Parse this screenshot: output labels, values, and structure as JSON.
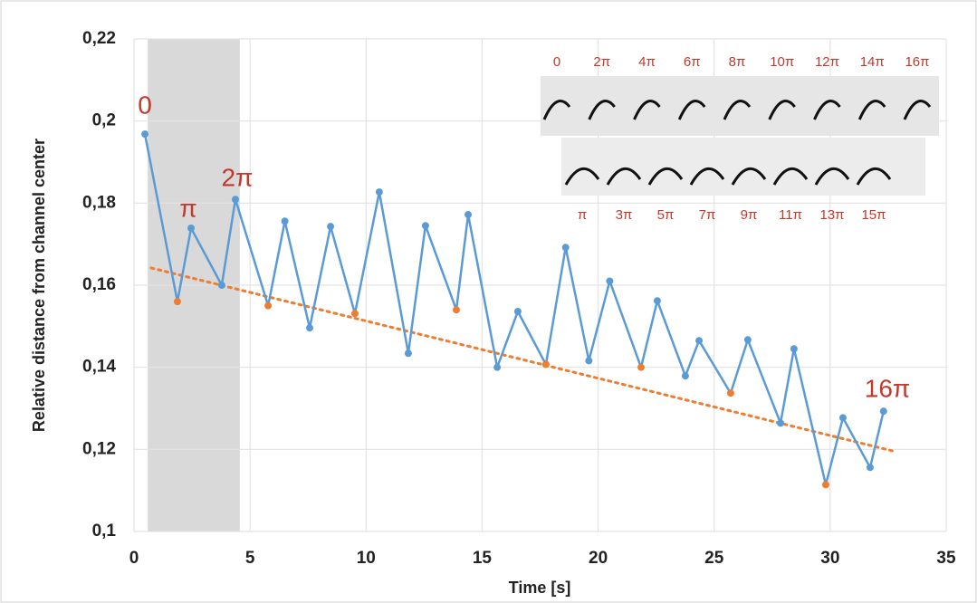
{
  "chart_data": {
    "type": "line",
    "xlabel": "Time [s]",
    "ylabel": "Relative distance from channel center",
    "xlim": [
      0,
      35
    ],
    "xticks": [
      0,
      5,
      10,
      15,
      20,
      25,
      30,
      35
    ],
    "ylim": [
      0.1,
      0.22
    ],
    "yticks": [
      {
        "value": 0.1,
        "label": "0,1"
      },
      {
        "value": 0.12,
        "label": "0,12"
      },
      {
        "value": 0.14,
        "label": "0,14"
      },
      {
        "value": 0.16,
        "label": "0,16"
      },
      {
        "value": 0.18,
        "label": "0,18"
      },
      {
        "value": 0.2,
        "label": "0,2"
      },
      {
        "value": 0.22,
        "label": "0,22"
      }
    ],
    "grid": true,
    "shaded_x": [
      0.59,
      4.56
    ],
    "shade_color": "#d9d9d9",
    "series": [
      {
        "color": "#5b9bd5",
        "x": [
          0.47,
          1.87,
          2.46,
          3.78,
          4.37,
          5.78,
          6.5,
          7.57,
          8.47,
          9.52,
          10.57,
          11.82,
          12.56,
          13.89,
          14.4,
          15.65,
          16.54,
          17.75,
          18.6,
          19.6,
          20.5,
          21.85,
          22.55,
          23.76,
          24.35,
          25.71,
          26.45,
          27.86,
          28.44,
          29.81,
          30.55,
          31.72,
          32.3
        ],
        "values": [
          0.1968,
          0.156,
          0.1739,
          0.16,
          0.1809,
          0.155,
          0.1756,
          0.1496,
          0.1743,
          0.1531,
          0.1827,
          0.1434,
          0.1745,
          0.154,
          0.1772,
          0.14,
          0.1536,
          0.1407,
          0.1692,
          0.1416,
          0.161,
          0.14,
          0.1562,
          0.1379,
          0.1465,
          0.1337,
          0.1467,
          0.1264,
          0.1445,
          0.1114,
          0.1277,
          0.1156,
          0.1293
        ],
        "marker_colors": [
          "#5b9bd5",
          "#ed7d31",
          "#5b9bd5",
          "#5b9bd5",
          "#5b9bd5",
          "#ed7d31",
          "#5b9bd5",
          "#5b9bd5",
          "#5b9bd5",
          "#ed7d31",
          "#5b9bd5",
          "#5b9bd5",
          "#5b9bd5",
          "#ed7d31",
          "#5b9bd5",
          "#5b9bd5",
          "#5b9bd5",
          "#ed7d31",
          "#5b9bd5",
          "#5b9bd5",
          "#5b9bd5",
          "#ed7d31",
          "#5b9bd5",
          "#5b9bd5",
          "#5b9bd5",
          "#ed7d31",
          "#5b9bd5",
          "#5b9bd5",
          "#5b9bd5",
          "#ed7d31",
          "#5b9bd5",
          "#5b9bd5",
          "#5b9bd5"
        ]
      }
    ],
    "trendline": {
      "color": "#ed7d31",
      "x": [
        0.74,
        32.85
      ],
      "values": [
        0.1642,
        0.1194
      ]
    },
    "annotations": [
      "0",
      "π",
      "2π",
      "16π"
    ],
    "inset_top_labels": [
      "0",
      "2π",
      "4π",
      "6π",
      "8π",
      "10π",
      "12π",
      "14π",
      "16π"
    ],
    "inset_bottom_labels": [
      "π",
      "3π",
      "5π",
      "7π",
      "9π",
      "11π",
      "13π",
      "15π"
    ]
  }
}
